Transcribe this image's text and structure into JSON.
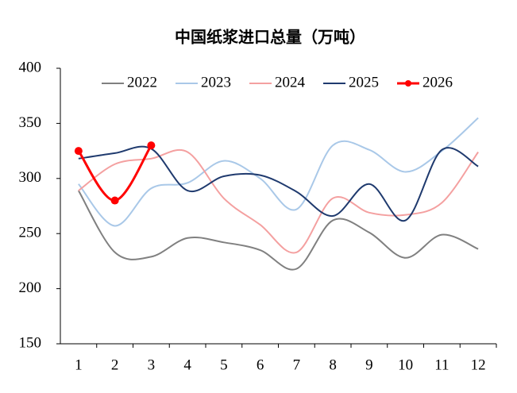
{
  "chart_data": {
    "type": "line",
    "title": "中国纸浆进口总量（万吨）",
    "categories": [
      "1",
      "2",
      "3",
      "4",
      "5",
      "6",
      "7",
      "8",
      "9",
      "10",
      "11",
      "12"
    ],
    "ylim": [
      150,
      400
    ],
    "yticks": [
      150,
      200,
      250,
      300,
      350,
      400
    ],
    "legend": "top",
    "series": [
      {
        "name": "2022",
        "color": "#808080",
        "values": [
          289,
          233,
          229,
          246,
          242,
          235,
          218,
          262,
          251,
          228,
          249,
          236
        ]
      },
      {
        "name": "2023",
        "color": "#a9c8e8",
        "values": [
          295,
          257,
          291,
          296,
          316,
          300,
          272,
          330,
          326,
          306,
          325,
          355
        ]
      },
      {
        "name": "2024",
        "color": "#f4a0a0",
        "values": [
          289,
          313,
          318,
          324,
          282,
          258,
          233,
          282,
          269,
          267,
          278,
          324
        ]
      },
      {
        "name": "2025",
        "color": "#1f3a6e",
        "values": [
          318,
          323,
          327,
          289,
          302,
          303,
          288,
          266,
          295,
          262,
          326,
          311
        ]
      },
      {
        "name": "2026",
        "color": "#ff0000",
        "markers": true,
        "values": [
          325,
          280,
          330,
          null,
          null,
          null,
          null,
          null,
          null,
          null,
          null,
          null
        ]
      }
    ]
  }
}
